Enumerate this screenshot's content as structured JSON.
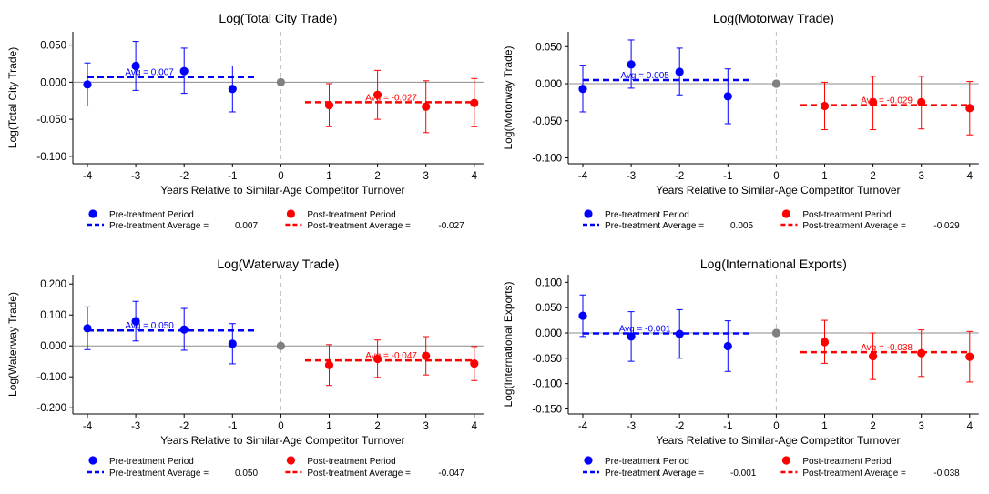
{
  "chart_data": [
    {
      "type": "scatter",
      "title": "Log(Total City Trade)",
      "xlabel": "Years Relative to Similar-Age Competitor Turnover",
      "ylabel": "Log(Total City Trade)",
      "x_ticks": [
        "-4",
        "-3",
        "-2",
        "-1",
        "0",
        "1",
        "2",
        "3",
        "4"
      ],
      "y_ticks": [
        "0.050",
        "0.000",
        "-0.050",
        "-0.100"
      ],
      "y_tick_values": [
        0.05,
        0.0,
        -0.05,
        -0.1
      ],
      "ylim": [
        -0.11,
        0.068
      ],
      "series": [
        {
          "name": "Pre-treatment Period",
          "color": "#0000ff",
          "x": [
            -4,
            -3,
            -2,
            -1
          ],
          "y": [
            -0.003,
            0.022,
            0.015,
            -0.009
          ],
          "ci_low": [
            -0.032,
            -0.011,
            -0.015,
            -0.04
          ],
          "ci_high": [
            0.026,
            0.055,
            0.046,
            0.022
          ]
        },
        {
          "name": "Post-treatment Period",
          "color": "#ff0000",
          "x": [
            1,
            2,
            3,
            4
          ],
          "y": [
            -0.031,
            -0.017,
            -0.033,
            -0.028
          ],
          "ci_low": [
            -0.06,
            -0.05,
            -0.068,
            -0.06
          ],
          "ci_high": [
            -0.002,
            0.016,
            0.002,
            0.005
          ]
        }
      ],
      "reference": {
        "name": "Reference year",
        "color": "#808080",
        "x": 0,
        "y": 0.0
      },
      "averages": [
        {
          "legend": "Pre-treatment Average =",
          "value": 0.007,
          "display": "0.007",
          "annotation": "Avg =   0.007",
          "x_range": [
            -4,
            -0.5
          ],
          "color": "#0000ff"
        },
        {
          "legend": "Post-treatment Average =",
          "value": -0.027,
          "display": "-0.027",
          "annotation": "Avg =   -0.027",
          "x_range": [
            0.5,
            4
          ],
          "color": "#ff0000"
        }
      ],
      "legend_placement": "bottom"
    },
    {
      "type": "scatter",
      "title": "Log(Motorway Trade)",
      "xlabel": "Years Relative to Similar-Age Competitor Turnover",
      "ylabel": "Log(Motorway Trade)",
      "x_ticks": [
        "-4",
        "-3",
        "-2",
        "-1",
        "0",
        "1",
        "2",
        "3",
        "4"
      ],
      "y_ticks": [
        "0.050",
        "0.000",
        "-0.050",
        "-0.100"
      ],
      "y_tick_values": [
        0.05,
        0.0,
        -0.05,
        -0.1
      ],
      "ylim": [
        -0.108,
        0.07
      ],
      "series": [
        {
          "name": "Pre-treatment Period",
          "color": "#0000ff",
          "x": [
            -4,
            -3,
            -2,
            -1
          ],
          "y": [
            -0.007,
            0.026,
            0.016,
            -0.017
          ],
          "ci_low": [
            -0.038,
            -0.006,
            -0.015,
            -0.054
          ],
          "ci_high": [
            0.025,
            0.059,
            0.048,
            0.02
          ]
        },
        {
          "name": "Post-treatment Period",
          "color": "#ff0000",
          "x": [
            1,
            2,
            3,
            4
          ],
          "y": [
            -0.03,
            -0.025,
            -0.025,
            -0.033
          ],
          "ci_low": [
            -0.062,
            -0.062,
            -0.061,
            -0.069
          ],
          "ci_high": [
            0.002,
            0.01,
            0.01,
            0.003
          ]
        }
      ],
      "reference": {
        "name": "Reference year",
        "color": "#808080",
        "x": 0,
        "y": 0.0
      },
      "averages": [
        {
          "legend": "Pre-treatment Average =",
          "value": 0.005,
          "display": "0.005",
          "annotation": "Avg =   0.005",
          "x_range": [
            -4,
            -0.5
          ],
          "color": "#0000ff"
        },
        {
          "legend": "Post-treatment Average =",
          "value": -0.029,
          "display": "-0.029",
          "annotation": "Avg =   -0.029",
          "x_range": [
            0.5,
            4
          ],
          "color": "#ff0000"
        }
      ],
      "legend_placement": "bottom"
    },
    {
      "type": "scatter",
      "title": "Log(Waterway Trade)",
      "xlabel": "Years Relative to Similar-Age Competitor Turnover",
      "ylabel": "Log(Waterway Trade)",
      "x_ticks": [
        "-4",
        "-3",
        "-2",
        "-1",
        "0",
        "1",
        "2",
        "3",
        "4"
      ],
      "y_ticks": [
        "0.200",
        "0.100",
        "0.000",
        "-0.100",
        "-0.200"
      ],
      "y_tick_values": [
        0.2,
        0.1,
        0.0,
        -0.1,
        -0.2
      ],
      "ylim": [
        -0.22,
        0.23
      ],
      "series": [
        {
          "name": "Pre-treatment Period",
          "color": "#0000ff",
          "x": [
            -4,
            -3,
            -2,
            -1
          ],
          "y": [
            0.057,
            0.08,
            0.053,
            0.007
          ],
          "ci_low": [
            -0.012,
            0.016,
            -0.014,
            -0.058
          ],
          "ci_high": [
            0.126,
            0.144,
            0.121,
            0.072
          ]
        },
        {
          "name": "Post-treatment Period",
          "color": "#ff0000",
          "x": [
            1,
            2,
            3,
            4
          ],
          "y": [
            -0.062,
            -0.042,
            -0.032,
            -0.057
          ],
          "ci_low": [
            -0.128,
            -0.102,
            -0.094,
            -0.112
          ],
          "ci_high": [
            0.004,
            0.019,
            0.03,
            -0.002
          ]
        }
      ],
      "reference": {
        "name": "Reference year",
        "color": "#808080",
        "x": 0,
        "y": 0.0
      },
      "averages": [
        {
          "legend": "Pre-treatment Average =",
          "value": 0.05,
          "display": "0.050",
          "annotation": "Avg =   0.050",
          "x_range": [
            -4,
            -0.5
          ],
          "color": "#0000ff"
        },
        {
          "legend": "Post-treatment Average =",
          "value": -0.047,
          "display": "-0.047",
          "annotation": "Avg =   -0.047",
          "x_range": [
            0.5,
            4
          ],
          "color": "#ff0000"
        }
      ],
      "legend_placement": "bottom"
    },
    {
      "type": "scatter",
      "title": "Log(International Exports)",
      "xlabel": "Years Relative to Similar-Age Competitor Turnover",
      "ylabel": "Log(International Exports)",
      "x_ticks": [
        "-4",
        "-3",
        "-2",
        "-1",
        "0",
        "1",
        "2",
        "3",
        "4"
      ],
      "y_ticks": [
        "0.100",
        "0.050",
        "0.000",
        "-0.050",
        "-0.100",
        "-0.150"
      ],
      "y_tick_values": [
        0.1,
        0.05,
        0.0,
        -0.05,
        -0.1,
        -0.15
      ],
      "ylim": [
        -0.16,
        0.115
      ],
      "series": [
        {
          "name": "Pre-treatment Period",
          "color": "#0000ff",
          "x": [
            -4,
            -3,
            -2,
            -1
          ],
          "y": [
            0.034,
            -0.007,
            -0.002,
            -0.026
          ],
          "ci_low": [
            -0.007,
            -0.056,
            -0.05,
            -0.076
          ],
          "ci_high": [
            0.075,
            0.042,
            0.046,
            0.024
          ]
        },
        {
          "name": "Post-treatment Period",
          "color": "#ff0000",
          "x": [
            1,
            2,
            3,
            4
          ],
          "y": [
            -0.018,
            -0.046,
            -0.04,
            -0.047
          ],
          "ci_low": [
            -0.06,
            -0.092,
            -0.086,
            -0.097
          ],
          "ci_high": [
            0.025,
            0.0,
            0.006,
            0.003
          ]
        }
      ],
      "reference": {
        "name": "Reference year",
        "color": "#808080",
        "x": 0,
        "y": 0.0
      },
      "averages": [
        {
          "legend": "Pre-treatment Average =",
          "value": -0.001,
          "display": "-0.001",
          "annotation": "Avg =   -0.001",
          "x_range": [
            -4,
            -0.5
          ],
          "color": "#0000ff"
        },
        {
          "legend": "Post-treatment Average =",
          "value": -0.038,
          "display": "-0.038",
          "annotation": "Avg =   -0.038",
          "x_range": [
            0.5,
            4
          ],
          "color": "#ff0000"
        }
      ],
      "legend_placement": "bottom"
    }
  ]
}
